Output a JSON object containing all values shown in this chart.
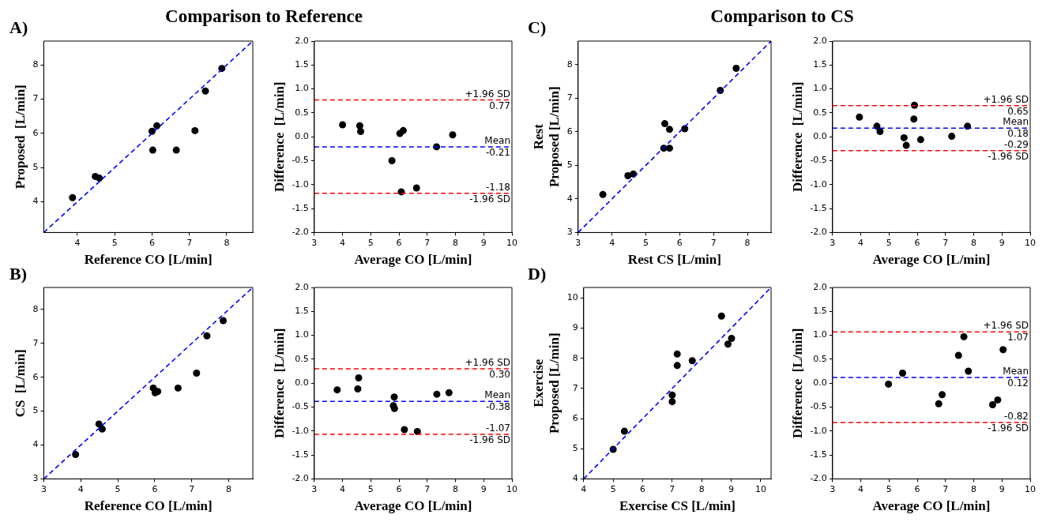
{
  "chart_data": [
    {
      "type": "scatter",
      "title": "Comparison to Reference",
      "annotations": [
        "A)"
      ],
      "xlabel": "Reference CO [L/min]",
      "ylabel": "Proposed  [L/min]",
      "xlim": [
        3.1,
        8.7
      ],
      "ylim": [
        3.1,
        8.7
      ],
      "xticks": [
        4,
        5,
        6,
        7,
        8
      ],
      "yticks": [
        4,
        5,
        6,
        7,
        8
      ],
      "series": [
        {
          "type": "scatter",
          "marker": "circle",
          "color": "#000000",
          "x": [
            3.87,
            4.48,
            4.59,
            6.0,
            6.13,
            6.02,
            6.65,
            7.15,
            7.43,
            7.87
          ],
          "values": [
            4.12,
            4.74,
            4.69,
            6.06,
            6.22,
            5.51,
            5.51,
            6.08,
            7.24,
            7.9
          ]
        },
        {
          "type": "line",
          "color": "#0000ff",
          "line_style": "dashed",
          "x": [
            3.1,
            8.7
          ],
          "values": [
            3.1,
            8.7
          ]
        }
      ]
    },
    {
      "type": "scatter",
      "xlabel": "Average CO [L/min]",
      "ylabel": "Difference  [L/min]",
      "xlim": [
        3,
        10
      ],
      "ylim": [
        -2,
        2
      ],
      "xticks": [
        3,
        4,
        5,
        6,
        7,
        8,
        9,
        10
      ],
      "yticks": [
        {
          "value": -2,
          "label": "-2.0"
        },
        {
          "value": -1.5,
          "label": "-1.5"
        },
        {
          "value": -1,
          "label": "-1.0"
        },
        {
          "value": -0.5,
          "label": "-0.5"
        },
        {
          "value": 0,
          "label": "0.0"
        },
        {
          "value": 0.5,
          "label": "0.5"
        },
        {
          "value": 1,
          "label": "1.0"
        },
        {
          "value": 1.5,
          "label": "1.5"
        },
        {
          "value": 2,
          "label": "2.0"
        }
      ],
      "marker": "circle",
      "series": [
        {
          "type": "scatter",
          "color": "#000000",
          "x": [
            4.0,
            4.61,
            4.64,
            5.75,
            6.03,
            6.15,
            6.08,
            6.62,
            7.33,
            7.9
          ],
          "values": [
            0.25,
            0.23,
            0.11,
            -0.5,
            0.07,
            0.13,
            -1.15,
            -1.07,
            -0.21,
            0.04
          ]
        }
      ],
      "ref_lines": [
        {
          "axis": "y",
          "value": 0.77,
          "label": "+1.96 SD",
          "color": "#ff0000",
          "line_style": "dashed"
        },
        {
          "axis": "y",
          "value": -0.21,
          "label": "Mean",
          "color": "#0000ff",
          "line_style": "dashed"
        },
        {
          "axis": "y",
          "value": -1.18,
          "label": "-1.96 SD",
          "color": "#ff0000",
          "line_style": "dashed"
        }
      ],
      "annotations": [
        {
          "text": "0.77",
          "y": 0.77
        },
        {
          "text": "-0.21",
          "y": -0.21
        },
        {
          "text": "-1.18",
          "y": -1.18
        }
      ]
    },
    {
      "type": "scatter",
      "title": "Comparison to CS",
      "annotations": [
        "C)"
      ],
      "xlabel": "Rest CS [L/min]",
      "ylabel": "Rest\nProposed [L/min]",
      "xlim": [
        3,
        8.7
      ],
      "ylim": [
        3,
        8.7
      ],
      "xticks": [
        3,
        4,
        5,
        6,
        7,
        8
      ],
      "yticks": [
        3,
        4,
        5,
        6,
        7,
        8
      ],
      "series": [
        {
          "type": "scatter",
          "marker": "circle",
          "color": "#000000",
          "x": [
            3.73,
            4.47,
            4.63,
            5.53,
            5.56,
            5.7,
            5.7,
            6.15,
            7.2,
            7.67
          ],
          "values": [
            4.13,
            4.69,
            4.74,
            5.51,
            6.24,
            6.07,
            5.51,
            6.09,
            7.23,
            7.89
          ]
        },
        {
          "type": "line",
          "color": "#0000ff",
          "line_style": "dashed",
          "x": [
            3,
            8.7
          ],
          "values": [
            3,
            8.7
          ]
        }
      ]
    },
    {
      "type": "scatter",
      "xlabel": "Average CO [L/min]",
      "ylabel": "Difference  [L/min]",
      "xlim": [
        3,
        10
      ],
      "ylim": [
        -2,
        2
      ],
      "xticks": [
        3,
        4,
        5,
        6,
        7,
        8,
        9,
        10
      ],
      "yticks": [
        {
          "value": -2,
          "label": "-2.0"
        },
        {
          "value": -1.5,
          "label": "-1.5"
        },
        {
          "value": -1,
          "label": "-1.0"
        },
        {
          "value": -0.5,
          "label": "-0.5"
        },
        {
          "value": 0,
          "label": "0.0"
        },
        {
          "value": 0.5,
          "label": "0.5"
        },
        {
          "value": 1,
          "label": "1.0"
        },
        {
          "value": 1.5,
          "label": "1.5"
        },
        {
          "value": 2,
          "label": "2.0"
        }
      ],
      "marker": "circle",
      "series": [
        {
          "type": "scatter",
          "color": "#000000",
          "x": [
            3.95,
            4.57,
            4.68,
            5.53,
            5.61,
            5.88,
            5.9,
            6.12,
            7.22,
            7.78
          ],
          "values": [
            0.41,
            0.22,
            0.11,
            -0.02,
            -0.18,
            0.37,
            0.66,
            -0.06,
            0.01,
            0.22
          ]
        }
      ],
      "ref_lines": [
        {
          "axis": "y",
          "value": 0.65,
          "label": "+1.96 SD",
          "color": "#ff0000",
          "line_style": "dashed"
        },
        {
          "axis": "y",
          "value": 0.18,
          "label": "Mean",
          "color": "#0000ff",
          "line_style": "dashed"
        },
        {
          "axis": "y",
          "value": -0.29,
          "label": "-1.96 SD",
          "color": "#ff0000",
          "line_style": "dashed"
        }
      ],
      "annotations": [
        {
          "text": "0.65",
          "y": 0.65
        },
        {
          "text": "0.18",
          "y": 0.18
        },
        {
          "text": "-0.29",
          "y": -0.29
        }
      ]
    },
    {
      "type": "scatter",
      "annotations": [
        "B)"
      ],
      "xlabel": "Reference CO [L/min]",
      "ylabel": "CS  [L/min]",
      "xlim": [
        3,
        8.65
      ],
      "ylim": [
        3,
        8.65
      ],
      "xticks": [
        3,
        4,
        5,
        6,
        7,
        8
      ],
      "yticks": [
        3,
        4,
        5,
        6,
        7,
        8
      ],
      "series": [
        {
          "type": "scatter",
          "marker": "circle",
          "color": "#000000",
          "x": [
            3.86,
            4.49,
            4.58,
            5.96,
            6.01,
            6.08,
            6.63,
            7.13,
            7.41,
            7.85
          ],
          "values": [
            3.72,
            4.62,
            4.47,
            5.68,
            5.54,
            5.58,
            5.68,
            6.12,
            7.22,
            7.67
          ]
        },
        {
          "type": "line",
          "color": "#0000ff",
          "line_style": "dashed",
          "x": [
            3,
            8.65
          ],
          "values": [
            3,
            8.65
          ]
        }
      ]
    },
    {
      "type": "scatter",
      "xlabel": "Average CO [L/min]",
      "ylabel": "Difference  [L/min]",
      "xlim": [
        3,
        10
      ],
      "ylim": [
        -2,
        2
      ],
      "xticks": [
        3,
        4,
        5,
        6,
        7,
        8,
        9,
        10
      ],
      "yticks": [
        {
          "value": -2,
          "label": "-2.0"
        },
        {
          "value": -1.5,
          "label": "-1.5"
        },
        {
          "value": -1,
          "label": "-1.0"
        },
        {
          "value": -0.5,
          "label": "-0.5"
        },
        {
          "value": 0,
          "label": "0.0"
        },
        {
          "value": 0.5,
          "label": "0.5"
        },
        {
          "value": 1,
          "label": "1.0"
        },
        {
          "value": 1.5,
          "label": "1.5"
        },
        {
          "value": 2,
          "label": "2.0"
        }
      ],
      "marker": "circle",
      "series": [
        {
          "type": "scatter",
          "color": "#000000",
          "x": [
            3.81,
            4.54,
            4.57,
            5.83,
            5.8,
            5.84,
            6.19,
            6.65,
            7.34,
            7.77
          ],
          "values": [
            -0.14,
            -0.12,
            0.11,
            -0.29,
            -0.47,
            -0.53,
            -0.97,
            -1.01,
            -0.23,
            -0.2
          ]
        }
      ],
      "ref_lines": [
        {
          "axis": "y",
          "value": 0.3,
          "label": "+1.96 SD",
          "color": "#ff0000",
          "line_style": "dashed"
        },
        {
          "axis": "y",
          "value": -0.38,
          "label": "Mean",
          "color": "#0000ff",
          "line_style": "dashed"
        },
        {
          "axis": "y",
          "value": -1.07,
          "label": "-1.96 SD",
          "color": "#ff0000",
          "line_style": "dashed"
        }
      ],
      "annotations": [
        {
          "text": "0.30",
          "y": 0.3
        },
        {
          "text": "-0.38",
          "y": -0.38
        },
        {
          "text": "-1.07",
          "y": -1.07
        }
      ]
    },
    {
      "type": "scatter",
      "annotations": [
        "D)"
      ],
      "xlabel": "Exercise CS [L/min]",
      "ylabel": "Exercise\nProposed [L/min]",
      "xlim": [
        4,
        10.35
      ],
      "ylim": [
        4,
        10.35
      ],
      "xticks": [
        4,
        5,
        6,
        7,
        8,
        9,
        10
      ],
      "yticks": [
        4,
        5,
        6,
        7,
        8,
        9,
        10
      ],
      "series": [
        {
          "type": "scatter",
          "marker": "circle",
          "color": "#000000",
          "x": [
            5.0,
            5.38,
            7.0,
            7.0,
            7.17,
            7.17,
            7.68,
            8.67,
            8.89,
            9.01
          ],
          "values": [
            4.98,
            5.58,
            6.78,
            6.56,
            8.14,
            7.76,
            7.92,
            9.4,
            8.47,
            8.66
          ]
        },
        {
          "type": "line",
          "color": "#0000ff",
          "line_style": "dashed",
          "x": [
            4,
            10.35
          ],
          "values": [
            4,
            10.35
          ]
        }
      ]
    },
    {
      "type": "scatter",
      "xlabel": "Average CO [L/min]",
      "ylabel": "Difference  [L/min]",
      "xlim": [
        3,
        10
      ],
      "ylim": [
        -2,
        2
      ],
      "xticks": [
        3,
        4,
        5,
        6,
        7,
        8,
        9,
        10
      ],
      "yticks": [
        {
          "value": -2,
          "label": "-2.0"
        },
        {
          "value": -1.5,
          "label": "-1.5"
        },
        {
          "value": -1,
          "label": "-1.0"
        },
        {
          "value": -0.5,
          "label": "-0.5"
        },
        {
          "value": 0,
          "label": "0.0"
        },
        {
          "value": 0.5,
          "label": "0.5"
        },
        {
          "value": 1,
          "label": "1.0"
        },
        {
          "value": 1.5,
          "label": "1.5"
        },
        {
          "value": 2,
          "label": "2.0"
        }
      ],
      "marker": "circle",
      "series": [
        {
          "type": "scatter",
          "color": "#000000",
          "x": [
            4.98,
            5.48,
            6.76,
            6.88,
            7.46,
            7.65,
            7.81,
            8.67,
            8.85,
            9.04
          ],
          "values": [
            -0.02,
            0.21,
            -0.43,
            -0.24,
            0.58,
            0.97,
            0.25,
            -0.45,
            -0.35,
            0.7
          ]
        }
      ],
      "ref_lines": [
        {
          "axis": "y",
          "value": 1.07,
          "label": "+1.96 SD",
          "color": "#ff0000",
          "line_style": "dashed"
        },
        {
          "axis": "y",
          "value": 0.12,
          "label": "Mean",
          "color": "#0000ff",
          "line_style": "dashed"
        },
        {
          "axis": "y",
          "value": -0.82,
          "label": "-1.96 SD",
          "color": "#ff0000",
          "line_style": "dashed"
        }
      ],
      "annotations": [
        {
          "text": "1.07",
          "y": 1.07
        },
        {
          "text": "0.12",
          "y": 0.12
        },
        {
          "text": "-0.82",
          "y": -0.82
        }
      ]
    }
  ]
}
